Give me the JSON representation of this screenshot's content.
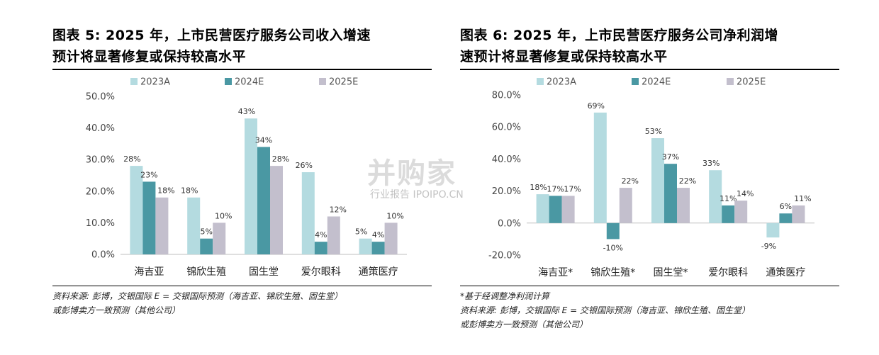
{
  "colors": {
    "2023A": "#b4dbe0",
    "2024E": "#4a98a3",
    "2025E": "#c3bfcd",
    "axis": "#bfbfbf"
  },
  "watermark": {
    "main": "并购家",
    "sub": "行业报告 IPOIPO.CN"
  },
  "left": {
    "title_line1": "图表 5: 2025 年，上市民营医疗服务公司收入增速",
    "title_line2": "预计将显著修复或保持较高水平",
    "source_line1": "资料来源: 彭博，交银国际 E = 交银国际预测（海吉亚、锦欣生殖、固生堂）",
    "source_line2": "或彭博卖方一致预测（其他公司）"
  },
  "right": {
    "title_line1": "图表 6: 2025 年，上市民营医疗服务公司净利润增",
    "title_line2": "速预计将显著修复或保持较高水平",
    "note": "*基于经调整净利润计算",
    "source_line1": "资料来源: 彭博，交银国际 E = 交银国际预测（海吉亚、锦欣生殖、固生堂）",
    "source_line2": "或彭博卖方一致预测（其他公司）"
  },
  "chart_data": [
    {
      "type": "bar",
      "title": "图表 5: 2025 年，上市民营医疗服务公司收入增速预计将显著修复或保持较高水平",
      "categories": [
        "海吉亚",
        "锦欣生殖",
        "固生堂",
        "爱尔眼科",
        "通策医疗"
      ],
      "series": [
        {
          "name": "2023A",
          "values": [
            28,
            18,
            43,
            26,
            5
          ],
          "labels": [
            "28%",
            "18%",
            "43%",
            "26%",
            "5%"
          ]
        },
        {
          "name": "2024E",
          "values": [
            23,
            5,
            34,
            4,
            4
          ],
          "labels": [
            "23%",
            "5%",
            "34%",
            "4%",
            "4%"
          ]
        },
        {
          "name": "2025E",
          "values": [
            18,
            10,
            28,
            12,
            10
          ],
          "labels": [
            "18%",
            "10%",
            "28%",
            "12%",
            "10%"
          ]
        }
      ],
      "ylim": [
        0,
        50
      ],
      "yticks": [
        "0.0%",
        "10.0%",
        "20.0%",
        "30.0%",
        "40.0%",
        "50.0%"
      ],
      "legend": "top",
      "grid": false
    },
    {
      "type": "bar",
      "title": "图表 6: 2025 年，上市民营医疗服务公司净利润增速预计将显著修复或保持较高水平",
      "categories": [
        "海吉亚*",
        "锦欣生殖*",
        "固生堂*",
        "爱尔眼科",
        "通策医疗"
      ],
      "series": [
        {
          "name": "2023A",
          "values": [
            18,
            69,
            53,
            33,
            -9
          ],
          "labels": [
            "18%",
            "69%",
            "53%",
            "33%",
            "-9%"
          ]
        },
        {
          "name": "2024E",
          "values": [
            17,
            -10,
            37,
            11,
            6
          ],
          "labels": [
            "17%",
            "-10%",
            "37%",
            "11%",
            "6%"
          ]
        },
        {
          "name": "2025E",
          "values": [
            17,
            22,
            22,
            14,
            11
          ],
          "labels": [
            "17%",
            "22%",
            "22%",
            "14%",
            "11%"
          ]
        }
      ],
      "ylim": [
        -20,
        80
      ],
      "yticks": [
        "-20.0%",
        "0.0%",
        "20.0%",
        "40.0%",
        "60.0%",
        "80.0%"
      ],
      "legend": "top",
      "grid": false
    }
  ]
}
